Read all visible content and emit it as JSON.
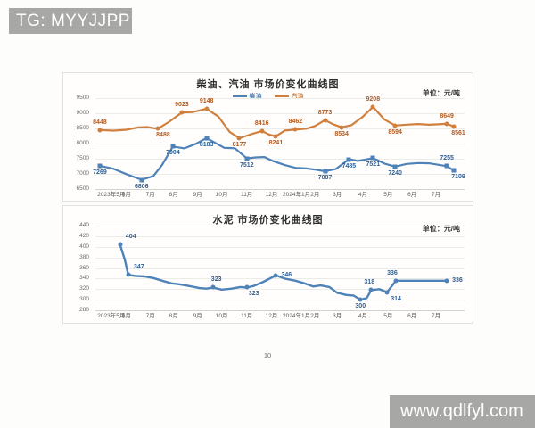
{
  "watermark_tg": "TG: MYYJJPP",
  "watermark_url": "www.qdlfyl.com",
  "page_number": "10",
  "colors": {
    "watermark_bg": "#a7a7a5",
    "diesel_blue": "#4e82b8",
    "gasoline_orange": "#d07f3d",
    "cement_blue": "#4e82b8"
  },
  "charts": [
    {
      "title": "柴油、汽油 市场价变化曲线图",
      "unit_label": "单位：元/吨",
      "legend": [
        {
          "label": "柴油",
          "color": "#4e82b8"
        },
        {
          "label": "汽油",
          "color": "#d07f3d"
        }
      ],
      "y_axis": {
        "min": 6500,
        "max": 9500,
        "step": 500
      },
      "x_ticks": [
        {
          "label": "2023年5月",
          "x": 4.3
        },
        {
          "label": "6月",
          "x": 8.4
        },
        {
          "label": "7月",
          "x": 14.9
        },
        {
          "label": "8月",
          "x": 21.2
        },
        {
          "label": "9月",
          "x": 27.7
        },
        {
          "label": "10月",
          "x": 34.2
        },
        {
          "label": "11月",
          "x": 41.0
        },
        {
          "label": "12月",
          "x": 47.7
        },
        {
          "label": "2024年1月",
          "x": 54.5
        },
        {
          "label": "2月",
          "x": 59.5
        },
        {
          "label": "3月",
          "x": 65.5
        },
        {
          "label": "4月",
          "x": 72.5
        },
        {
          "label": "5月",
          "x": 79.3
        },
        {
          "label": "6月",
          "x": 85.8
        },
        {
          "label": "7月",
          "x": 92.3
        }
      ],
      "series": [
        {
          "name": "柴油",
          "color": "#4e82b8",
          "label_color": "#2f6096",
          "marker": "square",
          "stroke_width": 2.2,
          "points": [
            [
              1.2,
              7269
            ],
            [
              4.8,
              7170
            ],
            [
              8.4,
              6990
            ],
            [
              12.5,
              6806
            ],
            [
              15.7,
              6930
            ],
            [
              18.1,
              7300
            ],
            [
              21,
              7904
            ],
            [
              24.1,
              7840
            ],
            [
              27.2,
              7990
            ],
            [
              30.1,
              8183
            ],
            [
              32.5,
              8020
            ],
            [
              34.9,
              7860
            ],
            [
              37.8,
              7845
            ],
            [
              41,
              7512
            ],
            [
              43.4,
              7545
            ],
            [
              45.8,
              7555
            ],
            [
              48.2,
              7420
            ],
            [
              51.3,
              7290
            ],
            [
              54.2,
              7200
            ],
            [
              57.1,
              7180
            ],
            [
              59.5,
              7140
            ],
            [
              62.2,
              7087
            ],
            [
              65.1,
              7160
            ],
            [
              68.7,
              7485
            ],
            [
              71.1,
              7430
            ],
            [
              75.2,
              7521
            ],
            [
              78.3,
              7340
            ],
            [
              81.2,
              7240
            ],
            [
              84.3,
              7330
            ],
            [
              87.5,
              7360
            ],
            [
              90.4,
              7350
            ],
            [
              95.2,
              7255
            ],
            [
              97.1,
              7109
            ]
          ],
          "labels": [
            {
              "x": 1.2,
              "v": 7269,
              "pos": "below"
            },
            {
              "x": 12.5,
              "v": 6806,
              "pos": "below"
            },
            {
              "x": 21,
              "v": 7904,
              "pos": "below"
            },
            {
              "x": 30.1,
              "v": 8183,
              "pos": "below"
            },
            {
              "x": 41,
              "v": 7512,
              "pos": "below"
            },
            {
              "x": 62.2,
              "v": 7087,
              "pos": "below"
            },
            {
              "x": 68.7,
              "v": 7485,
              "pos": "below"
            },
            {
              "x": 75.2,
              "v": 7521,
              "pos": "below"
            },
            {
              "x": 81.2,
              "v": 7240,
              "pos": "below"
            },
            {
              "x": 95.2,
              "v": 7255,
              "pos": "above"
            },
            {
              "x": 97.1,
              "v": 7109,
              "pos": "below",
              "dx": 5
            }
          ]
        },
        {
          "name": "汽油",
          "color": "#d07f3d",
          "label_color": "#b35a1f",
          "marker": "circle",
          "stroke_width": 2.2,
          "points": [
            [
              1.2,
              8448
            ],
            [
              4.8,
              8425
            ],
            [
              8.4,
              8455
            ],
            [
              11.6,
              8535
            ],
            [
              14,
              8545
            ],
            [
              16.9,
              8488
            ],
            [
              20,
              8720
            ],
            [
              23.4,
              9023
            ],
            [
              26.5,
              9040
            ],
            [
              30.1,
              9148
            ],
            [
              33.3,
              8890
            ],
            [
              36.4,
              8380
            ],
            [
              39,
              8177
            ],
            [
              42.2,
              8310
            ],
            [
              45.1,
              8416
            ],
            [
              47,
              8300
            ],
            [
              48.9,
              8241
            ],
            [
              51.3,
              8430
            ],
            [
              54.2,
              8462
            ],
            [
              57.1,
              8490
            ],
            [
              59.5,
              8580
            ],
            [
              62.2,
              8773
            ],
            [
              64.3,
              8640
            ],
            [
              66.7,
              8534
            ],
            [
              69.4,
              8610
            ],
            [
              72.3,
              8870
            ],
            [
              75.2,
              9208
            ],
            [
              78.3,
              8790
            ],
            [
              81.2,
              8594
            ],
            [
              84.3,
              8625
            ],
            [
              87.5,
              8645
            ],
            [
              90.4,
              8620
            ],
            [
              95.2,
              8649
            ],
            [
              97.1,
              8561
            ]
          ],
          "labels": [
            {
              "x": 1.2,
              "v": 8448,
              "pos": "above"
            },
            {
              "x": 16.9,
              "v": 8488,
              "pos": "below",
              "dx": 6
            },
            {
              "x": 23.4,
              "v": 9023,
              "pos": "above"
            },
            {
              "x": 30.1,
              "v": 9148,
              "pos": "above"
            },
            {
              "x": 39,
              "v": 8177,
              "pos": "below"
            },
            {
              "x": 45.1,
              "v": 8416,
              "pos": "above"
            },
            {
              "x": 48.9,
              "v": 8241,
              "pos": "below"
            },
            {
              "x": 54.2,
              "v": 8462,
              "pos": "above"
            },
            {
              "x": 62.2,
              "v": 8773,
              "pos": "above"
            },
            {
              "x": 66.7,
              "v": 8534,
              "pos": "below"
            },
            {
              "x": 75.2,
              "v": 9208,
              "pos": "above"
            },
            {
              "x": 81.2,
              "v": 8594,
              "pos": "below"
            },
            {
              "x": 95.2,
              "v": 8649,
              "pos": "above"
            },
            {
              "x": 97.1,
              "v": 8561,
              "pos": "below",
              "dx": 5
            }
          ]
        }
      ]
    },
    {
      "title": "水泥 市场价变化曲线图",
      "unit_label": "单位：元/吨",
      "legend": [],
      "y_axis": {
        "min": 280,
        "max": 440,
        "step": 20
      },
      "x_ticks": [
        {
          "label": "2023年5月",
          "x": 4.3
        },
        {
          "label": "6月",
          "x": 8.4
        },
        {
          "label": "7月",
          "x": 14.9
        },
        {
          "label": "8月",
          "x": 21.2
        },
        {
          "label": "9月",
          "x": 27.7
        },
        {
          "label": "10月",
          "x": 34.2
        },
        {
          "label": "11月",
          "x": 41.0
        },
        {
          "label": "12月",
          "x": 47.7
        },
        {
          "label": "2024年1月",
          "x": 54.5
        },
        {
          "label": "2月",
          "x": 59.5
        },
        {
          "label": "3月",
          "x": 65.5
        },
        {
          "label": "4月",
          "x": 72.5
        },
        {
          "label": "5月",
          "x": 79.3
        },
        {
          "label": "6月",
          "x": 85.8
        },
        {
          "label": "7月",
          "x": 92.3
        }
      ],
      "series": [
        {
          "name": "水泥",
          "color": "#4e82b8",
          "label_color": "#2f6096",
          "marker": "circle",
          "stroke_width": 2.4,
          "points": [
            [
              6.7,
              404
            ],
            [
              8,
              375
            ],
            [
              8.9,
              347
            ],
            [
              10.8,
              345
            ],
            [
              13.3,
              344
            ],
            [
              15.7,
              341
            ],
            [
              18.1,
              336
            ],
            [
              20.5,
              331
            ],
            [
              22.9,
              329
            ],
            [
              25.3,
              326
            ],
            [
              28.2,
              322
            ],
            [
              30.1,
              321
            ],
            [
              31.8,
              323
            ],
            [
              34.2,
              319
            ],
            [
              36.9,
              321
            ],
            [
              39.3,
              324
            ],
            [
              41,
              323
            ],
            [
              42.9,
              326
            ],
            [
              45.3,
              333
            ],
            [
              47.5,
              341
            ],
            [
              48.9,
              346
            ],
            [
              51.3,
              340
            ],
            [
              54.2,
              336
            ],
            [
              56.6,
              331
            ],
            [
              59,
              325
            ],
            [
              61,
              327
            ],
            [
              63.4,
              324
            ],
            [
              65.5,
              313
            ],
            [
              68,
              309
            ],
            [
              69.9,
              308
            ],
            [
              71.8,
              300
            ],
            [
              73.5,
              303
            ],
            [
              74.7,
              318
            ],
            [
              76.9,
              320
            ],
            [
              79,
              314
            ],
            [
              81.4,
              336
            ],
            [
              88,
              336
            ],
            [
              95.2,
              336
            ]
          ],
          "labels": [
            {
              "x": 6.7,
              "v": 404,
              "pos": "above",
              "dx": 12
            },
            {
              "x": 8.9,
              "v": 347,
              "pos": "above",
              "dx": 12
            },
            {
              "x": 31.8,
              "v": 323,
              "pos": "above",
              "dx": 4
            },
            {
              "x": 41,
              "v": 323,
              "pos": "below",
              "dx": 8
            },
            {
              "x": 48.9,
              "v": 346,
              "pos": "right"
            },
            {
              "x": 71.8,
              "v": 300,
              "pos": "below"
            },
            {
              "x": 74.7,
              "v": 318,
              "pos": "above",
              "dx": -2
            },
            {
              "x": 81.4,
              "v": 336,
              "pos": "above",
              "dx": -4
            },
            {
              "x": 79,
              "v": 314,
              "pos": "below",
              "dx": 10
            },
            {
              "x": 95.2,
              "v": 336,
              "pos": "right"
            }
          ]
        }
      ]
    }
  ],
  "chart_data": [
    {
      "type": "line",
      "title": "柴油、汽油 市场价变化曲线图",
      "unit": "元/吨",
      "xlabel": "",
      "ylabel": "",
      "ylim": [
        6500,
        9500
      ],
      "grid": true,
      "legend_position": "top",
      "x_labels": [
        "2023年5月",
        "6月",
        "7月",
        "8月",
        "9月",
        "10月",
        "11月",
        "12月",
        "2024年1月",
        "2月",
        "3月",
        "4月",
        "5月",
        "6月",
        "7月"
      ],
      "series": [
        {
          "name": "柴油",
          "color": "#4e82b8",
          "labeled_values": [
            7269,
            6806,
            7904,
            8183,
            7512,
            7087,
            7485,
            7521,
            7240,
            7255,
            7109
          ]
        },
        {
          "name": "汽油",
          "color": "#d07f3d",
          "labeled_values": [
            8448,
            8488,
            9023,
            9148,
            8177,
            8416,
            8241,
            8462,
            8773,
            8534,
            9208,
            8594,
            8649,
            8561
          ]
        }
      ]
    },
    {
      "type": "line",
      "title": "水泥 市场价变化曲线图",
      "unit": "元/吨",
      "xlabel": "",
      "ylabel": "",
      "ylim": [
        280,
        440
      ],
      "grid": true,
      "legend_position": "none",
      "x_labels": [
        "2023年5月",
        "6月",
        "7月",
        "8月",
        "9月",
        "10月",
        "11月",
        "12月",
        "2024年1月",
        "2月",
        "3月",
        "4月",
        "5月",
        "6月",
        "7月"
      ],
      "series": [
        {
          "name": "水泥",
          "color": "#4e82b8",
          "labeled_values": [
            404,
            347,
            323,
            323,
            346,
            300,
            318,
            336,
            314,
            336
          ]
        }
      ]
    }
  ]
}
